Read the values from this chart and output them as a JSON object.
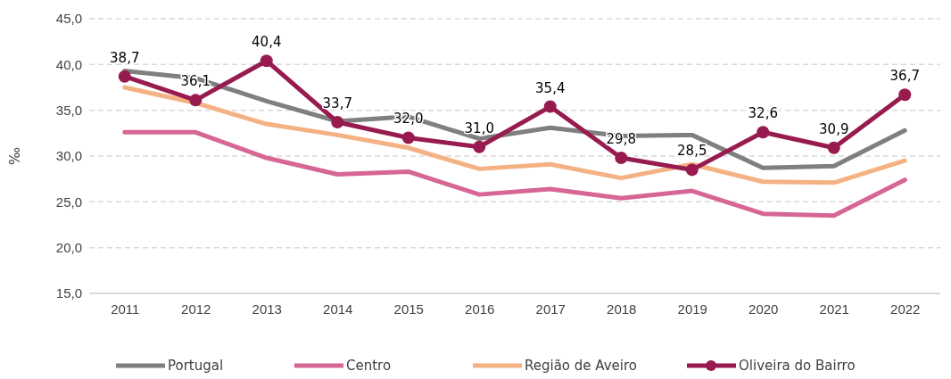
{
  "chart_data": {
    "type": "line",
    "ylabel": "‰",
    "categories": [
      "2011",
      "2012",
      "2013",
      "2014",
      "2015",
      "2016",
      "2017",
      "2018",
      "2019",
      "2020",
      "2021",
      "2022"
    ],
    "ylim": [
      15,
      45
    ],
    "yticks": [
      {
        "value": 15,
        "label": "15,0"
      },
      {
        "value": 20,
        "label": "20,0"
      },
      {
        "value": 25,
        "label": "25,0"
      },
      {
        "value": 30,
        "label": "30,0"
      },
      {
        "value": 35,
        "label": "35,0"
      },
      {
        "value": 40,
        "label": "40,0"
      },
      {
        "value": 45,
        "label": "45,0"
      }
    ],
    "grid": "y",
    "legend": "bottom",
    "line_style": "solid",
    "series": [
      {
        "name": "Portugal",
        "color": "#7f7f7f",
        "marker": "none",
        "values": [
          39.3,
          38.5,
          36.0,
          33.8,
          34.3,
          31.9,
          33.1,
          32.2,
          32.3,
          28.7,
          28.9,
          32.8
        ]
      },
      {
        "name": "Centro",
        "color": "#d66694",
        "marker": "none",
        "values": [
          32.6,
          32.6,
          29.8,
          28.0,
          28.3,
          25.8,
          26.4,
          25.4,
          26.2,
          23.7,
          23.5,
          27.4
        ]
      },
      {
        "name": "Região de Aveiro",
        "color": "#f4b183",
        "marker": "none",
        "values": [
          37.5,
          35.8,
          33.5,
          32.3,
          30.9,
          28.6,
          29.1,
          27.6,
          29.1,
          27.2,
          27.1,
          29.5
        ]
      },
      {
        "name": "Oliveira do Bairro",
        "color": "#971b4f",
        "marker": "circle",
        "values": [
          38.7,
          36.1,
          40.4,
          33.7,
          32.0,
          31.0,
          35.4,
          29.8,
          28.5,
          32.6,
          30.9,
          36.7
        ],
        "value_labels": [
          "38,7",
          "36,1",
          "40,4",
          "33,7",
          "32,0",
          "31,0",
          "35,4",
          "29,8",
          "28,5",
          "32,6",
          "30,9",
          "36,7"
        ]
      }
    ]
  }
}
